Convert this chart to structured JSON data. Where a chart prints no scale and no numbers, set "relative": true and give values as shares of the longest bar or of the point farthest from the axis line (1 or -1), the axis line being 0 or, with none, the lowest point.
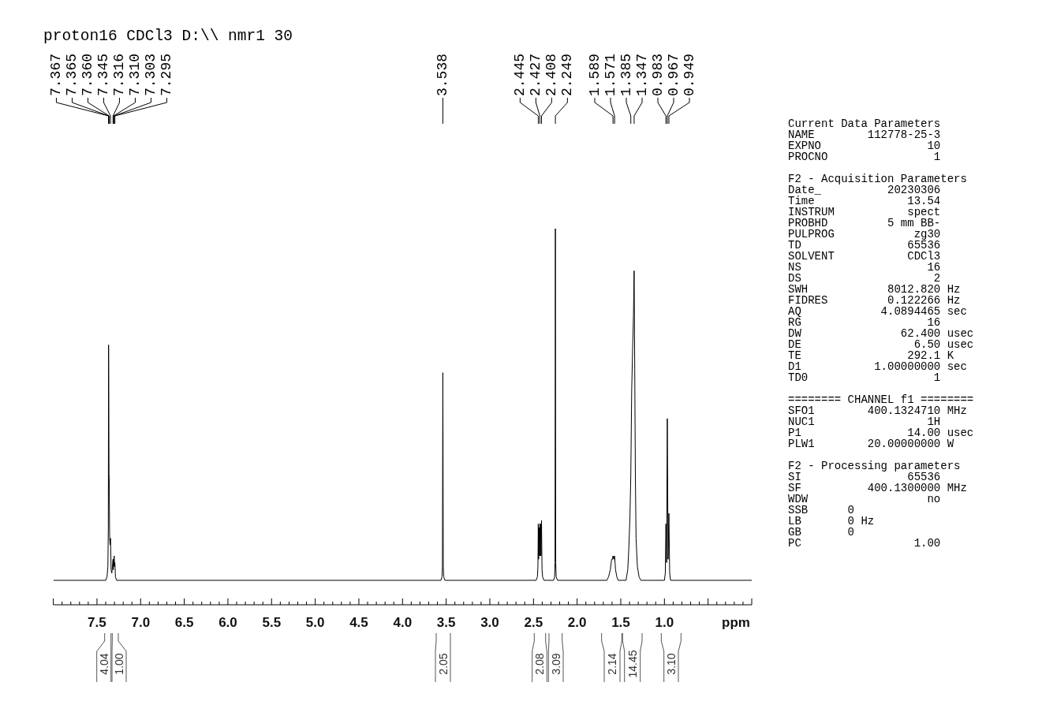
{
  "chart_data": [
    {
      "type": "line",
      "title": "proton16 CDCl3 D:\\\\ nmr1 30",
      "xlabel": "ppm",
      "relative": true,
      "color": "#000000",
      "xlim": [
        8,
        0
      ],
      "xticks": [
        {
          "value": 8,
          "label": null
        },
        {
          "value": 7.9,
          "label": null
        },
        {
          "value": 7.8,
          "label": null
        },
        {
          "value": 7.7,
          "label": null
        },
        {
          "value": 7.6,
          "label": null
        },
        7.5,
        {
          "value": 7.4,
          "label": null
        },
        {
          "value": 7.3,
          "label": null
        },
        {
          "value": 7.2,
          "label": null
        },
        {
          "value": 7.1,
          "label": null
        },
        {
          "value": 7,
          "label": "7.0"
        },
        {
          "value": 6.9,
          "label": null
        },
        {
          "value": 6.8,
          "label": null
        },
        {
          "value": 6.7,
          "label": null
        },
        {
          "value": 6.6,
          "label": null
        },
        6.5,
        {
          "value": 6.4,
          "label": null
        },
        {
          "value": 6.3,
          "label": null
        },
        {
          "value": 6.2,
          "label": null
        },
        {
          "value": 6.1,
          "label": null
        },
        {
          "value": 6,
          "label": "6.0"
        },
        {
          "value": 5.9,
          "label": null
        },
        {
          "value": 5.8,
          "label": null
        },
        {
          "value": 5.7,
          "label": null
        },
        {
          "value": 5.6,
          "label": null
        },
        5.5,
        {
          "value": 5.4,
          "label": null
        },
        {
          "value": 5.3,
          "label": null
        },
        {
          "value": 5.2,
          "label": null
        },
        {
          "value": 5.1,
          "label": null
        },
        {
          "value": 5,
          "label": "5.0"
        },
        {
          "value": 4.9,
          "label": null
        },
        {
          "value": 4.8,
          "label": null
        },
        {
          "value": 4.7,
          "label": null
        },
        {
          "value": 4.6,
          "label": null
        },
        4.5,
        {
          "value": 4.4,
          "label": null
        },
        {
          "value": 4.3,
          "label": null
        },
        {
          "value": 4.2,
          "label": null
        },
        {
          "value": 4.1,
          "label": null
        },
        {
          "value": 4,
          "label": "4.0"
        },
        {
          "value": 3.9,
          "label": null
        },
        {
          "value": 3.8,
          "label": null
        },
        {
          "value": 3.7,
          "label": null
        },
        {
          "value": 3.6,
          "label": null
        },
        3.5,
        {
          "value": 3.4,
          "label": null
        },
        {
          "value": 3.3,
          "label": null
        },
        {
          "value": 3.2,
          "label": null
        },
        {
          "value": 3.1,
          "label": null
        },
        {
          "value": 3,
          "label": "3.0"
        },
        {
          "value": 2.9,
          "label": null
        },
        {
          "value": 2.8,
          "label": null
        },
        {
          "value": 2.7,
          "label": null
        },
        {
          "value": 2.6,
          "label": null
        },
        2.5,
        {
          "value": 2.4,
          "label": null
        },
        {
          "value": 2.3,
          "label": null
        },
        {
          "value": 2.2,
          "label": null
        },
        {
          "value": 2.1,
          "label": null
        },
        {
          "value": 2,
          "label": "2.0"
        },
        {
          "value": 1.9,
          "label": null
        },
        {
          "value": 1.8,
          "label": null
        },
        {
          "value": 1.7,
          "label": null
        },
        {
          "value": 1.6,
          "label": null
        },
        1.5,
        {
          "value": 1.4,
          "label": null
        },
        {
          "value": 1.3,
          "label": null
        },
        {
          "value": 1.2,
          "label": null
        },
        {
          "value": 1.1,
          "label": null
        },
        {
          "value": 1,
          "label": "1.0"
        },
        {
          "value": 0.9,
          "label": null
        },
        {
          "value": 0.8,
          "label": null
        },
        {
          "value": 0.7,
          "label": null
        },
        {
          "value": 0.6,
          "label": null
        },
        {
          "value": 0.5,
          "label": null
        },
        {
          "value": 0.4,
          "label": null
        },
        {
          "value": 0.3,
          "label": null
        },
        {
          "value": 0.2,
          "label": null
        },
        {
          "value": 0.1,
          "label": null
        },
        {
          "value": 0,
          "label": null
        }
      ],
      "x": [
        8,
        7.4,
        7.385,
        7.375,
        7.37,
        7.367,
        7.365,
        7.362,
        7.36,
        7.355,
        7.35,
        7.345,
        7.338,
        7.33,
        7.323,
        7.316,
        7.313,
        7.31,
        7.306,
        7.303,
        7.299,
        7.295,
        7.288,
        7.275,
        3.56,
        3.548,
        3.543,
        3.538,
        3.533,
        3.528,
        3.515,
        2.47,
        2.455,
        2.449,
        2.445,
        2.441,
        2.436,
        2.432,
        2.427,
        2.423,
        2.418,
        2.414,
        2.408,
        2.402,
        2.395,
        2.38,
        2.27,
        2.258,
        2.253,
        2.249,
        2.245,
        2.24,
        2.225,
        1.66,
        1.64,
        1.62,
        1.605,
        1.595,
        1.589,
        1.58,
        1.571,
        1.56,
        1.545,
        1.53,
        1.44,
        1.42,
        1.408,
        1.395,
        1.385,
        1.375,
        1.364,
        1.355,
        1.347,
        1.34,
        1.333,
        1.325,
        1.31,
        1.29,
        1.27,
        1,
        0.99,
        0.983,
        0.975,
        0.967,
        0.958,
        0.949,
        0.94,
        0.93,
        0
      ],
      "values": [
        0.065,
        0.065,
        0.074,
        0.102,
        0.205,
        0.691,
        0.579,
        0.346,
        0.336,
        0.177,
        0.159,
        0.177,
        0.093,
        0.084,
        0.102,
        0.121,
        0.093,
        0.121,
        0.102,
        0.13,
        0.102,
        0.112,
        0.074,
        0.065,
        0.065,
        0.074,
        0.102,
        0.617,
        0.102,
        0.074,
        0.065,
        0.065,
        0.074,
        0.102,
        0.215,
        0.121,
        0.205,
        0.13,
        0.215,
        0.13,
        0.215,
        0.13,
        0.224,
        0.093,
        0.074,
        0.065,
        0.065,
        0.074,
        0.112,
        1,
        0.112,
        0.074,
        0.065,
        0.065,
        0.074,
        0.093,
        0.121,
        0.121,
        0.13,
        0.121,
        0.13,
        0.093,
        0.074,
        0.065,
        0.065,
        0.093,
        0.149,
        0.233,
        0.346,
        0.57,
        0.682,
        0.766,
        0.888,
        0.626,
        0.346,
        0.177,
        0.102,
        0.074,
        0.065,
        0.065,
        0.084,
        0.215,
        0.112,
        0.495,
        0.121,
        0.243,
        0.084,
        0.065,
        0.065
      ],
      "annotations": [
        {
          "text": "7.367",
          "x": 7.367
        },
        {
          "text": "7.365",
          "x": 7.365
        },
        {
          "text": "7.360",
          "x": 7.36
        },
        {
          "text": "7.345",
          "x": 7.345
        },
        {
          "text": "7.316",
          "x": 7.316
        },
        {
          "text": "7.310",
          "x": 7.31
        },
        {
          "text": "7.303",
          "x": 7.303
        },
        {
          "text": "7.295",
          "x": 7.295
        },
        {
          "text": "3.538",
          "x": 3.538
        },
        {
          "text": "2.445",
          "x": 2.445
        },
        {
          "text": "2.427",
          "x": 2.427
        },
        {
          "text": "2.408",
          "x": 2.408
        },
        {
          "text": "2.249",
          "x": 2.249
        },
        {
          "text": "1.589",
          "x": 1.589
        },
        {
          "text": "1.571",
          "x": 1.571
        },
        {
          "text": "1.385",
          "x": 1.385
        },
        {
          "text": "1.347",
          "x": 1.347
        },
        {
          "text": "0.983",
          "x": 0.983
        },
        {
          "text": "0.967",
          "x": 0.967
        },
        {
          "text": "0.949",
          "x": 0.949
        },
        "4.04",
        "1.00",
        "2.05",
        "2.08",
        "3.09",
        "2.14",
        "14.45",
        "3.10"
      ]
    },
    {
      "type": "other",
      "title": "Current Data Parameters",
      "annotations": [
        "NAME        112778-25-3",
        "EXPNO                10",
        "PROCNO                1"
      ]
    },
    {
      "type": "other",
      "title": "F2 - Acquisition Parameters",
      "annotations": [
        "Date_          20230306",
        "Time              13.54",
        "INSTRUM           spect",
        "PROBHD         5 mm BB-",
        "PULPROG            zg30",
        "TD                65536",
        "SOLVENT           CDCl3",
        "NS                   16",
        "DS                    2",
        "SWH            8012.820 Hz",
        "FIDRES         0.122266 Hz",
        "AQ            4.0894465 sec",
        "RG                   16",
        "DW               62.400 usec",
        "DE                 6.50 usec",
        "TE                292.1 K",
        "D1           1.00000000 sec",
        "TD0                   1"
      ]
    },
    {
      "type": "other",
      "title": "======== CHANNEL f1 ========",
      "annotations": [
        "SFO1        400.1324710 MHz",
        "NUC1                 1H",
        "P1                14.00 usec",
        "PLW1        20.00000000 W"
      ]
    },
    {
      "type": "other",
      "title": "F2 - Processing parameters",
      "annotations": [
        "SI                65536",
        "SF          400.1300000 MHz",
        "WDW                  no",
        "SSB      0",
        "LB       0 Hz",
        "GB       0",
        "PC                 1.00"
      ]
    }
  ]
}
